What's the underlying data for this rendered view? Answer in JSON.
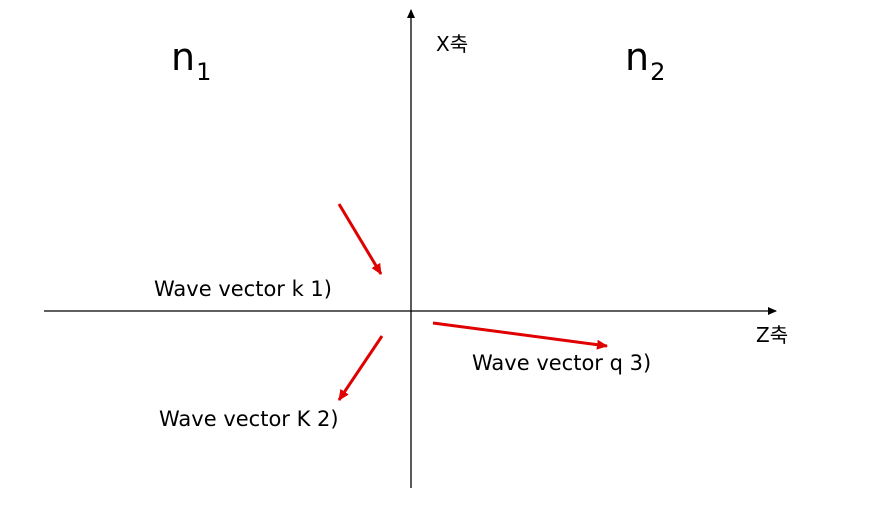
{
  "media": {
    "left_symbol": "n",
    "left_subscript": "1",
    "right_symbol": "n",
    "right_subscript": "2"
  },
  "axes": {
    "x_axis_label": "X축",
    "z_axis_label": "Z축"
  },
  "vectors": {
    "vector_1_label": "Wave vector k 1)",
    "vector_2_label": "Wave vector K 2)",
    "vector_3_label": "Wave vector q 3)"
  },
  "colors": {
    "axis": "#000000",
    "vector": "#e00000",
    "background": "#ffffff"
  }
}
